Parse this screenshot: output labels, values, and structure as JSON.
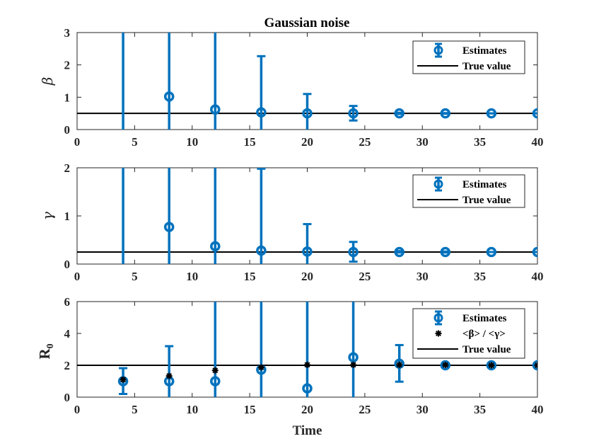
{
  "figure_title": "Gaussian noise",
  "colors": {
    "estimate": "#0072bd",
    "true_line": "#000000",
    "ratio_marker": "#000000",
    "axes": "#262626"
  },
  "chart_data": [
    {
      "type": "scatter",
      "name": "beta",
      "title": "Gaussian noise",
      "ylabel": "β",
      "xlabel": "",
      "xlim": [
        0,
        40
      ],
      "ylim": [
        0,
        3
      ],
      "xticks": [
        0,
        5,
        10,
        15,
        20,
        25,
        30,
        35,
        40
      ],
      "yticks": [
        0,
        1,
        2,
        3
      ],
      "legend": {
        "position": "top-right",
        "entries": [
          "Estimates",
          "True value"
        ]
      },
      "true_value": 0.5,
      "series": [
        {
          "name": "Estimates",
          "x": [
            4,
            8,
            12,
            16,
            20,
            24,
            28,
            32,
            36,
            40
          ],
          "y": [
            null,
            1.02,
            0.62,
            0.53,
            0.5,
            0.5,
            0.5,
            0.5,
            0.5,
            0.5
          ],
          "err_low": [
            0,
            0,
            0,
            0,
            0,
            0.28,
            0.48,
            0.49,
            0.5,
            0.5
          ],
          "err_high": [
            3,
            3,
            3,
            2.27,
            1.1,
            0.73,
            0.52,
            0.51,
            0.5,
            0.5
          ]
        }
      ]
    },
    {
      "type": "scatter",
      "name": "gamma",
      "ylabel": "γ",
      "xlabel": "",
      "xlim": [
        0,
        40
      ],
      "ylim": [
        0,
        2
      ],
      "xticks": [
        0,
        5,
        10,
        15,
        20,
        25,
        30,
        35,
        40
      ],
      "yticks": [
        0,
        1,
        2
      ],
      "legend": {
        "position": "top-right",
        "entries": [
          "Estimates",
          "True value"
        ]
      },
      "true_value": 0.25,
      "series": [
        {
          "name": "Estimates",
          "x": [
            4,
            8,
            12,
            16,
            20,
            24,
            28,
            32,
            36,
            40
          ],
          "y": [
            null,
            0.77,
            0.37,
            0.28,
            0.26,
            0.25,
            0.25,
            0.25,
            0.25,
            0.25
          ],
          "err_low": [
            0,
            0,
            0,
            0,
            0,
            0.05,
            0.24,
            0.24,
            0.25,
            0.25
          ],
          "err_high": [
            2,
            2,
            2,
            1.98,
            0.83,
            0.46,
            0.27,
            0.26,
            0.25,
            0.25
          ]
        }
      ]
    },
    {
      "type": "scatter",
      "name": "R0",
      "ylabel": "R",
      "ylabel_sub": "0",
      "xlabel": "Time",
      "xlim": [
        0,
        40
      ],
      "ylim": [
        0,
        6
      ],
      "xticks": [
        0,
        5,
        10,
        15,
        20,
        25,
        30,
        35,
        40
      ],
      "yticks": [
        0,
        2,
        4,
        6
      ],
      "legend": {
        "position": "top-right",
        "entries": [
          "Estimates",
          "<β> / <γ>",
          "True value"
        ]
      },
      "true_value": 2,
      "series": [
        {
          "name": "Estimates",
          "x": [
            4,
            8,
            12,
            16,
            20,
            24,
            28,
            32,
            36,
            40
          ],
          "y": [
            1.0,
            1.0,
            1.0,
            1.72,
            0.55,
            2.5,
            2.1,
            2.0,
            2.0,
            2.0
          ],
          "err_low": [
            0.2,
            0,
            0,
            0,
            0,
            0,
            0.97,
            1.97,
            1.99,
            2.0
          ],
          "err_high": [
            1.82,
            3.2,
            6,
            6,
            6,
            6,
            3.27,
            2.03,
            2.01,
            2.0
          ]
        },
        {
          "name": "<β> / <γ>",
          "marker": "asterisk",
          "x": [
            4,
            8,
            12,
            16,
            20,
            24,
            28,
            32,
            36,
            40
          ],
          "y": [
            1.1,
            1.33,
            1.68,
            1.87,
            2.03,
            2.03,
            2.03,
            2.02,
            2.0,
            2.0
          ]
        }
      ]
    }
  ]
}
